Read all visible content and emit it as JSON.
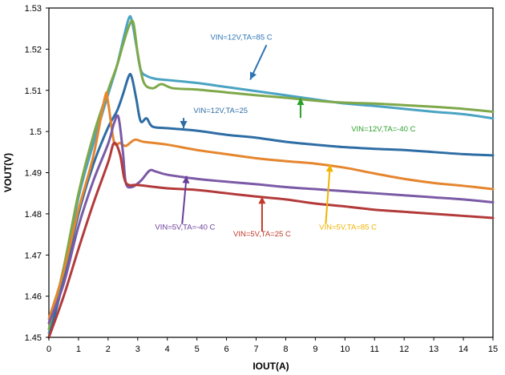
{
  "chart_data": {
    "type": "line",
    "title": "",
    "xlabel": "IOUT(A)",
    "ylabel": "VOUT(V)",
    "xlim": [
      0,
      15
    ],
    "ylim": [
      1.45,
      1.53
    ],
    "xticks": [
      "0",
      "1",
      "2",
      "3",
      "4",
      "5",
      "6",
      "7",
      "8",
      "9",
      "10",
      "11",
      "12",
      "13",
      "14",
      "15"
    ],
    "yticks": [
      "1.45",
      "1.46",
      "1.47",
      "1.48",
      "1.49",
      "1.5",
      "1.51",
      "1.52",
      "1.53"
    ],
    "grid": false,
    "legend": "none",
    "series": [
      {
        "label": "VIN=12V,TA=85 C",
        "color": "#4BA3C3",
        "arrow_color": "#2E75B6",
        "points": [
          [
            0,
            1.451
          ],
          [
            0.5,
            1.465
          ],
          [
            1,
            1.484
          ],
          [
            1.5,
            1.497
          ],
          [
            2,
            1.509
          ],
          [
            2.3,
            1.516
          ],
          [
            2.5,
            1.522
          ],
          [
            2.7,
            1.5275
          ],
          [
            2.8,
            1.527
          ],
          [
            2.95,
            1.521
          ],
          [
            3.1,
            1.515
          ],
          [
            3.3,
            1.5135
          ],
          [
            3.6,
            1.5128
          ],
          [
            4,
            1.5125
          ],
          [
            5,
            1.5118
          ],
          [
            6,
            1.5108
          ],
          [
            7,
            1.5098
          ],
          [
            8,
            1.5088
          ],
          [
            9,
            1.5078
          ],
          [
            10,
            1.5068
          ],
          [
            11,
            1.5062
          ],
          [
            12,
            1.5055
          ],
          [
            13,
            1.5048
          ],
          [
            14,
            1.5042
          ],
          [
            15,
            1.5032
          ]
        ]
      },
      {
        "label": "VIN=12V,TA=-40 C",
        "color": "#7FA84A",
        "arrow_color": "#2CA02C",
        "points": [
          [
            0,
            1.452
          ],
          [
            0.5,
            1.467
          ],
          [
            1,
            1.485
          ],
          [
            1.5,
            1.499
          ],
          [
            2,
            1.51
          ],
          [
            2.3,
            1.516
          ],
          [
            2.5,
            1.521
          ],
          [
            2.7,
            1.5255
          ],
          [
            2.85,
            1.5265
          ],
          [
            3,
            1.519
          ],
          [
            3.2,
            1.512
          ],
          [
            3.5,
            1.5105
          ],
          [
            3.8,
            1.5115
          ],
          [
            4.2,
            1.5105
          ],
          [
            5,
            1.5102
          ],
          [
            6,
            1.5095
          ],
          [
            7,
            1.5088
          ],
          [
            8,
            1.5082
          ],
          [
            9,
            1.5075
          ],
          [
            10,
            1.507
          ],
          [
            11,
            1.5068
          ],
          [
            12,
            1.5064
          ],
          [
            13,
            1.506
          ],
          [
            14,
            1.5055
          ],
          [
            15,
            1.5048
          ]
        ]
      },
      {
        "label": "VIN=12V,TA=25",
        "color": "#2E6DA4",
        "arrow_color": "#2E6DA4",
        "points": [
          [
            0,
            1.45
          ],
          [
            0.5,
            1.464
          ],
          [
            1,
            1.48
          ],
          [
            1.5,
            1.492
          ],
          [
            2,
            1.501
          ],
          [
            2.3,
            1.505
          ],
          [
            2.5,
            1.509
          ],
          [
            2.7,
            1.5135
          ],
          [
            2.8,
            1.5132
          ],
          [
            2.95,
            1.508
          ],
          [
            3.1,
            1.5025
          ],
          [
            3.3,
            1.5032
          ],
          [
            3.5,
            1.5012
          ],
          [
            4,
            1.5008
          ],
          [
            5,
            1.5002
          ],
          [
            6,
            1.4992
          ],
          [
            7,
            1.4985
          ],
          [
            8,
            1.4975
          ],
          [
            9,
            1.4968
          ],
          [
            10,
            1.4962
          ],
          [
            11,
            1.4958
          ],
          [
            12,
            1.4955
          ],
          [
            13,
            1.495
          ],
          [
            14,
            1.4945
          ],
          [
            15,
            1.4942
          ]
        ]
      },
      {
        "label": "VIN=5V,TA=85 C",
        "color": "#E5862F",
        "arrow_color": "#F0B400",
        "points": [
          [
            0,
            1.4545
          ],
          [
            0.5,
            1.466
          ],
          [
            1,
            1.481
          ],
          [
            1.5,
            1.494
          ],
          [
            1.9,
            1.5085
          ],
          [
            2,
            1.507
          ],
          [
            2.2,
            1.4975
          ],
          [
            2.4,
            1.4972
          ],
          [
            2.6,
            1.4965
          ],
          [
            2.9,
            1.498
          ],
          [
            3.2,
            1.4975
          ],
          [
            4,
            1.4968
          ],
          [
            5,
            1.4955
          ],
          [
            6,
            1.4945
          ],
          [
            7,
            1.4935
          ],
          [
            8,
            1.4928
          ],
          [
            9,
            1.4922
          ],
          [
            10,
            1.4912
          ],
          [
            11,
            1.4898
          ],
          [
            12,
            1.4885
          ],
          [
            13,
            1.4875
          ],
          [
            14,
            1.4868
          ],
          [
            15,
            1.486
          ]
        ]
      },
      {
        "label": "VIN=5V,TA=-40 C",
        "color": "#7B5AA6",
        "arrow_color": "#6A3D9A",
        "points": [
          [
            0,
            1.4535
          ],
          [
            0.5,
            1.463
          ],
          [
            1,
            1.477
          ],
          [
            1.5,
            1.488
          ],
          [
            2,
            1.497
          ],
          [
            2.2,
            1.502
          ],
          [
            2.35,
            1.5035
          ],
          [
            2.5,
            1.495
          ],
          [
            2.6,
            1.4875
          ],
          [
            2.8,
            1.4865
          ],
          [
            3.1,
            1.488
          ],
          [
            3.4,
            1.4905
          ],
          [
            3.6,
            1.4903
          ],
          [
            4,
            1.4895
          ],
          [
            5,
            1.4885
          ],
          [
            6,
            1.4878
          ],
          [
            7,
            1.4872
          ],
          [
            8,
            1.4865
          ],
          [
            9,
            1.486
          ],
          [
            10,
            1.4855
          ],
          [
            11,
            1.485
          ],
          [
            12,
            1.4845
          ],
          [
            13,
            1.484
          ],
          [
            14,
            1.4835
          ],
          [
            15,
            1.4828
          ]
        ]
      },
      {
        "label": "VIN=5V,TA=25 C",
        "color": "#B33A3A",
        "arrow_color": "#C0392B",
        "points": [
          [
            0,
            1.45
          ],
          [
            0.5,
            1.46
          ],
          [
            1,
            1.4715
          ],
          [
            1.5,
            1.4825
          ],
          [
            2,
            1.4925
          ],
          [
            2.2,
            1.4972
          ],
          [
            2.4,
            1.4945
          ],
          [
            2.55,
            1.4885
          ],
          [
            2.7,
            1.487
          ],
          [
            3,
            1.487
          ],
          [
            4,
            1.4862
          ],
          [
            5,
            1.4858
          ],
          [
            6,
            1.485
          ],
          [
            7,
            1.4842
          ],
          [
            8,
            1.4835
          ],
          [
            9,
            1.4825
          ],
          [
            10,
            1.4818
          ],
          [
            11,
            1.481
          ],
          [
            12,
            1.4805
          ],
          [
            13,
            1.48
          ],
          [
            14,
            1.4795
          ],
          [
            15,
            1.479
          ]
        ]
      }
    ],
    "annotations": [
      {
        "text": "VIN=12V,TA=85 C",
        "series": 0,
        "text_at": [
          6.5,
          1.5223
        ],
        "arrow_tail": [
          7.35,
          1.521
        ],
        "arrow_head": [
          6.8,
          1.5126
        ]
      },
      {
        "text": "VIN=12V,TA=-40 C",
        "series": 1,
        "text_at": [
          11.3,
          1.5
        ],
        "arrow_tail": [
          8.5,
          1.5033
        ],
        "arrow_head": [
          8.5,
          1.5082
        ]
      },
      {
        "text": "VIN=12V,TA=25",
        "series": 2,
        "text_at": [
          5.8,
          1.5045
        ],
        "arrow_tail": [
          4.55,
          1.5033
        ],
        "arrow_head": [
          4.55,
          1.5008
        ]
      },
      {
        "text": "VIN=5V,TA=85 C",
        "series": 3,
        "text_at": [
          10.1,
          1.4762
        ],
        "arrow_tail": [
          9.35,
          1.4775
        ],
        "arrow_head": [
          9.5,
          1.492
        ]
      },
      {
        "text": "VIN=5V,TA=-40 C",
        "series": 4,
        "text_at": [
          4.6,
          1.4762
        ],
        "arrow_tail": [
          4.5,
          1.4775
        ],
        "arrow_head": [
          4.65,
          1.4892
        ]
      },
      {
        "text": "VIN=5V,TA=25 C",
        "series": 5,
        "text_at": [
          7.2,
          1.4745
        ],
        "arrow_tail": [
          7.2,
          1.4758
        ],
        "arrow_head": [
          7.2,
          1.4842
        ]
      }
    ]
  }
}
